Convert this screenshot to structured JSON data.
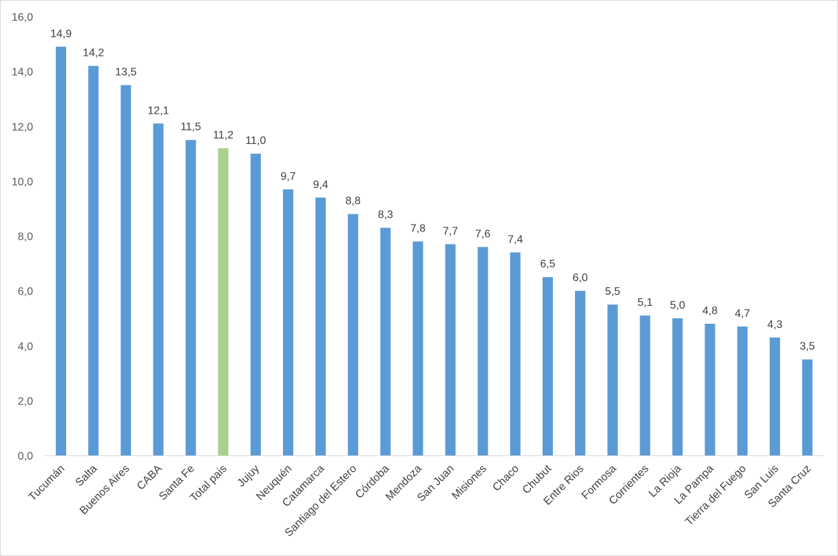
{
  "chart_data": {
    "type": "bar",
    "title": "",
    "xlabel": "",
    "ylabel": "",
    "ylim": [
      0,
      16
    ],
    "yticks": [
      "0,0",
      "2,0",
      "4,0",
      "6,0",
      "8,0",
      "10,0",
      "12,0",
      "14,0",
      "16,0"
    ],
    "grid": false,
    "categories": [
      "Tucumán",
      "Salta",
      "Buenos Aires",
      "CABA",
      "Santa Fe",
      "Total pais",
      "Jujuy",
      "Neuquén",
      "Catamarca",
      "Santiago del Estero",
      "Córdoba",
      "Mendoza",
      "San Juan",
      "Misiones",
      "Chaco",
      "Chubut",
      "Entre Rios",
      "Formosa",
      "Corrientes",
      "La Rioja",
      "La Pampa",
      "Tierra del Fuego",
      "San Luis",
      "Santa Cruz"
    ],
    "values": [
      14.9,
      14.2,
      13.5,
      12.1,
      11.5,
      11.2,
      11.0,
      9.7,
      9.4,
      8.8,
      8.3,
      7.8,
      7.7,
      7.6,
      7.4,
      6.5,
      6.0,
      5.5,
      5.1,
      5.0,
      4.8,
      4.7,
      4.3,
      3.5
    ],
    "data_labels": [
      "14,9",
      "14,2",
      "13,5",
      "12,1",
      "11,5",
      "11,2",
      "11,0",
      "9,7",
      "9,4",
      "8,8",
      "8,3",
      "7,8",
      "7,7",
      "7,6",
      "7,4",
      "6,5",
      "6,0",
      "5,5",
      "5,1",
      "5,0",
      "4,8",
      "4,7",
      "4,3",
      "3,5"
    ],
    "colors": {
      "bar": "#5b9bd5",
      "highlight": "#a9d18e",
      "axis": "#d9d9d9"
    },
    "highlight_category": "Total pais"
  }
}
